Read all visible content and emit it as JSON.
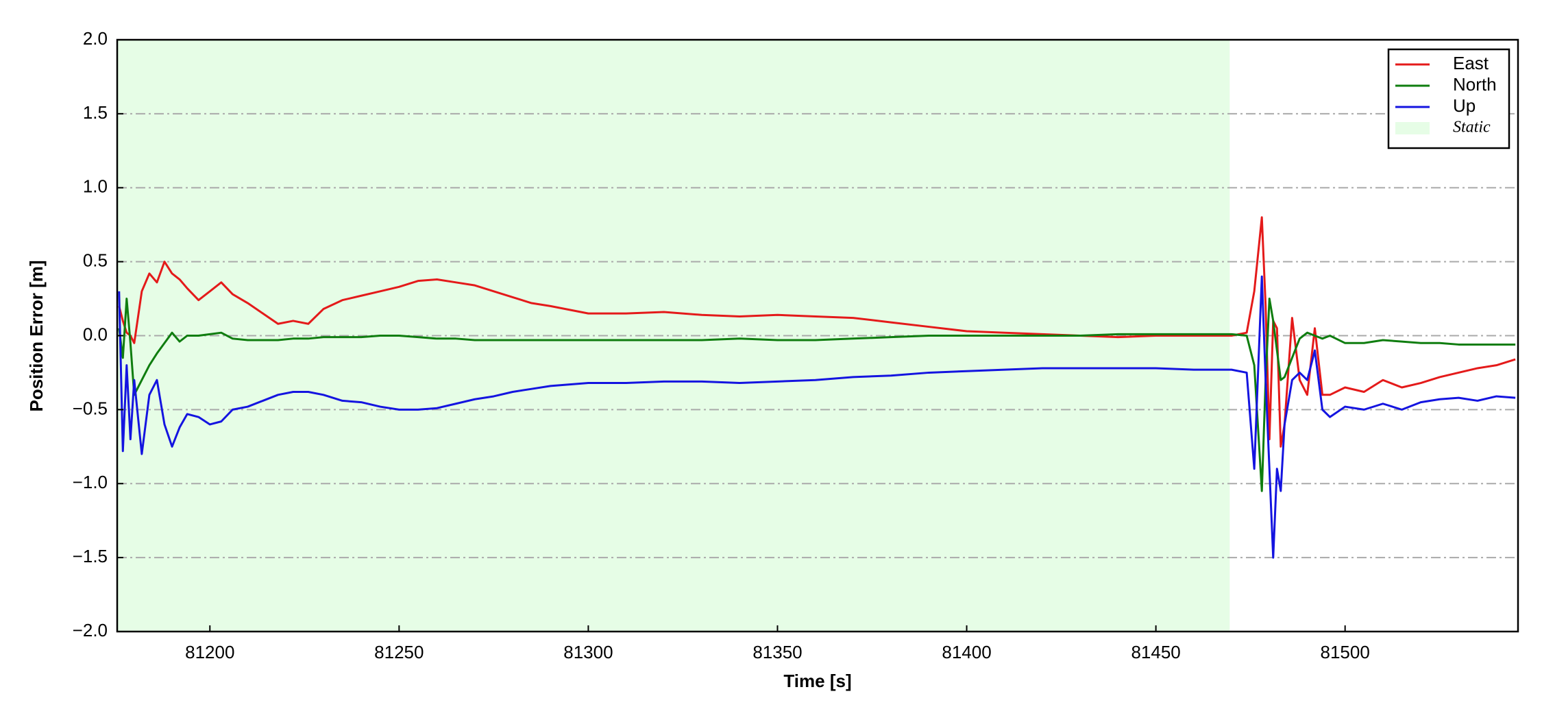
{
  "chart_data": {
    "type": "line",
    "xlabel": "Time [s]",
    "ylabel": "Position Error [m]",
    "x": [
      81176,
      81177,
      81178,
      81179,
      81180,
      81182,
      81184,
      81186,
      81188,
      81190,
      81192,
      81194,
      81197,
      81200,
      81203,
      81206,
      81210,
      81214,
      81218,
      81222,
      81226,
      81230,
      81235,
      81240,
      81245,
      81250,
      81255,
      81260,
      81265,
      81270,
      81275,
      81280,
      81285,
      81290,
      81300,
      81310,
      81320,
      81330,
      81340,
      81350,
      81360,
      81370,
      81380,
      81390,
      81400,
      81410,
      81420,
      81430,
      81440,
      81450,
      81460,
      81470,
      81474,
      81476,
      81478,
      81479,
      81480,
      81481,
      81482,
      81483,
      81484,
      81486,
      81488,
      81490,
      81492,
      81494,
      81496,
      81500,
      81505,
      81510,
      81515,
      81520,
      81525,
      81530,
      81535,
      81540,
      81545
    ],
    "series": [
      {
        "name": "East",
        "color": "#e41a1a",
        "values": [
          0.2,
          0.1,
          0.02,
          0.0,
          -0.05,
          0.3,
          0.42,
          0.36,
          0.5,
          0.42,
          0.38,
          0.32,
          0.24,
          0.3,
          0.36,
          0.28,
          0.22,
          0.15,
          0.08,
          0.1,
          0.08,
          0.18,
          0.24,
          0.27,
          0.3,
          0.33,
          0.37,
          0.38,
          0.36,
          0.34,
          0.3,
          0.26,
          0.22,
          0.2,
          0.15,
          0.15,
          0.16,
          0.14,
          0.13,
          0.14,
          0.13,
          0.12,
          0.09,
          0.06,
          0.03,
          0.02,
          0.01,
          0.0,
          -0.01,
          0.0,
          0.0,
          0.0,
          0.02,
          0.3,
          0.8,
          0.2,
          -0.7,
          0.1,
          0.05,
          -0.75,
          -0.6,
          0.12,
          -0.3,
          -0.4,
          0.05,
          -0.4,
          -0.4,
          -0.35,
          -0.38,
          -0.3,
          -0.35,
          -0.32,
          -0.28,
          -0.25,
          -0.22,
          -0.2,
          -0.16
        ]
      },
      {
        "name": "North",
        "color": "#0f7d0f",
        "values": [
          0.05,
          -0.15,
          0.25,
          -0.05,
          -0.4,
          -0.3,
          -0.2,
          -0.12,
          -0.05,
          0.02,
          -0.04,
          0.0,
          0.0,
          0.01,
          0.02,
          -0.02,
          -0.03,
          -0.03,
          -0.03,
          -0.02,
          -0.02,
          -0.01,
          -0.01,
          -0.01,
          0.0,
          0.0,
          -0.01,
          -0.02,
          -0.02,
          -0.03,
          -0.03,
          -0.03,
          -0.03,
          -0.03,
          -0.03,
          -0.03,
          -0.03,
          -0.03,
          -0.02,
          -0.03,
          -0.03,
          -0.02,
          -0.01,
          0.0,
          0.0,
          0.0,
          0.0,
          0.0,
          0.01,
          0.01,
          0.01,
          0.01,
          0.0,
          -0.2,
          -1.05,
          -0.3,
          0.25,
          0.1,
          -0.1,
          -0.3,
          -0.28,
          -0.15,
          -0.02,
          0.02,
          0.0,
          -0.02,
          0.0,
          -0.05,
          -0.05,
          -0.03,
          -0.04,
          -0.05,
          -0.05,
          -0.06,
          -0.06,
          -0.06,
          -0.06
        ]
      },
      {
        "name": "Up",
        "color": "#1414e0",
        "values": [
          0.3,
          -0.78,
          -0.2,
          -0.7,
          -0.3,
          -0.8,
          -0.4,
          -0.3,
          -0.6,
          -0.75,
          -0.62,
          -0.53,
          -0.55,
          -0.6,
          -0.58,
          -0.5,
          -0.48,
          -0.44,
          -0.4,
          -0.38,
          -0.38,
          -0.4,
          -0.44,
          -0.45,
          -0.48,
          -0.5,
          -0.5,
          -0.49,
          -0.46,
          -0.43,
          -0.41,
          -0.38,
          -0.36,
          -0.34,
          -0.32,
          -0.32,
          -0.31,
          -0.31,
          -0.32,
          -0.31,
          -0.3,
          -0.28,
          -0.27,
          -0.25,
          -0.24,
          -0.23,
          -0.22,
          -0.22,
          -0.22,
          -0.22,
          -0.23,
          -0.23,
          -0.25,
          -0.9,
          0.4,
          -0.3,
          -0.9,
          -1.5,
          -0.9,
          -1.05,
          -0.6,
          -0.3,
          -0.25,
          -0.3,
          -0.1,
          -0.5,
          -0.55,
          -0.48,
          -0.5,
          -0.46,
          -0.5,
          -0.45,
          -0.43,
          -0.42,
          -0.44,
          -0.41,
          -0.42
        ]
      }
    ],
    "span": {
      "name": "Static",
      "start": 81175.5,
      "end": 81469.5,
      "color": "#e6fde6"
    },
    "xlim": [
      81175.5,
      81545.7
    ],
    "ylim": [
      -2.0,
      2.0
    ],
    "xticks": [
      81200,
      81250,
      81300,
      81350,
      81400,
      81450,
      81500
    ],
    "yticks": [
      {
        "value": -2.0,
        "label": "−2.0"
      },
      {
        "value": -1.5,
        "label": "−1.5"
      },
      {
        "value": -1.0,
        "label": "−1.0"
      },
      {
        "value": -0.5,
        "label": "−0.5"
      },
      {
        "value": 0.0,
        "label": "0.0"
      },
      {
        "value": 0.5,
        "label": "0.5"
      },
      {
        "value": 1.0,
        "label": "1.0"
      },
      {
        "value": 1.5,
        "label": "1.5"
      },
      {
        "value": 2.0,
        "label": "2.0"
      }
    ],
    "grid": true,
    "legend": "upper right"
  }
}
